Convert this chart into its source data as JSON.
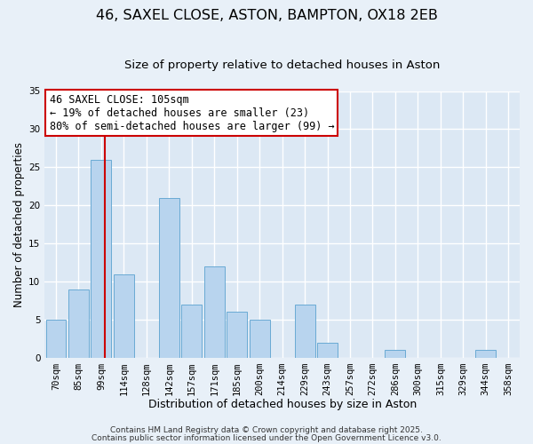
{
  "title": "46, SAXEL CLOSE, ASTON, BAMPTON, OX18 2EB",
  "subtitle": "Size of property relative to detached houses in Aston",
  "xlabel": "Distribution of detached houses by size in Aston",
  "ylabel": "Number of detached properties",
  "bar_labels": [
    "70sqm",
    "85sqm",
    "99sqm",
    "114sqm",
    "128sqm",
    "142sqm",
    "157sqm",
    "171sqm",
    "185sqm",
    "200sqm",
    "214sqm",
    "229sqm",
    "243sqm",
    "257sqm",
    "272sqm",
    "286sqm",
    "300sqm",
    "315sqm",
    "329sqm",
    "344sqm",
    "358sqm"
  ],
  "bar_values": [
    5,
    9,
    26,
    11,
    0,
    21,
    7,
    12,
    6,
    5,
    0,
    7,
    2,
    0,
    0,
    1,
    0,
    0,
    0,
    1,
    0
  ],
  "bar_color": "#b8d4ee",
  "bar_edge_color": "#6aaad4",
  "vline_x_index": 2,
  "vline_color": "#cc0000",
  "ylim": [
    0,
    35
  ],
  "yticks": [
    0,
    5,
    10,
    15,
    20,
    25,
    30,
    35
  ],
  "annotation_text": "46 SAXEL CLOSE: 105sqm\n← 19% of detached houses are smaller (23)\n80% of semi-detached houses are larger (99) →",
  "annotation_box_color": "#ffffff",
  "annotation_box_edge": "#cc0000",
  "footer1": "Contains HM Land Registry data © Crown copyright and database right 2025.",
  "footer2": "Contains public sector information licensed under the Open Government Licence v3.0.",
  "bg_color": "#e8f0f8",
  "plot_bg_color": "#dce8f4",
  "grid_color": "#ffffff",
  "title_fontsize": 11.5,
  "subtitle_fontsize": 9.5,
  "xlabel_fontsize": 9,
  "ylabel_fontsize": 8.5,
  "tick_fontsize": 7.5,
  "annotation_fontsize": 8.5,
  "footer_fontsize": 6.5
}
